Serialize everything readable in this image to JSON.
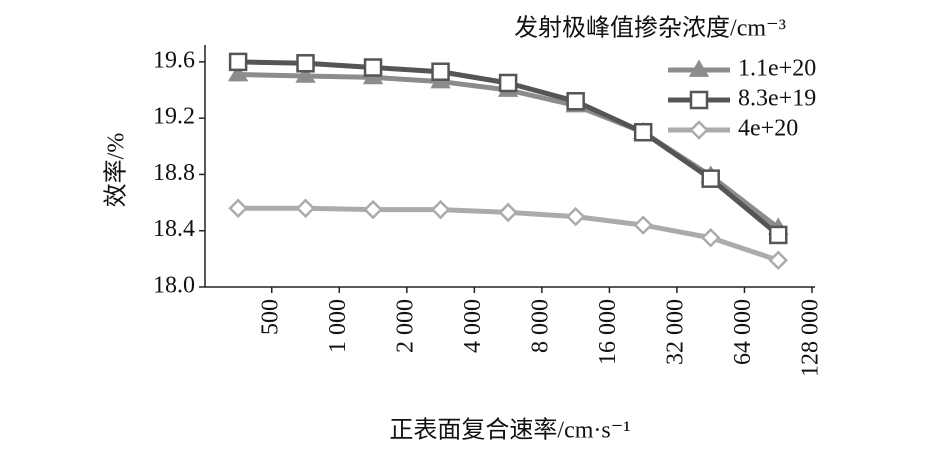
{
  "chart_data": {
    "type": "line",
    "y_label": "效率/%",
    "x_label": "正表面复合速率/cm·s⁻¹",
    "legend_title": "发射极峰值掺杂浓度/cm⁻³",
    "legend": "upper right",
    "x_scale": "log2",
    "x": [
      354,
      707,
      1414,
      2828,
      5657,
      11314,
      22627,
      45255,
      90510
    ],
    "xlim": [
      252,
      132000
    ],
    "xticks": [
      500,
      {
        "value": 1000,
        "label": "1 000"
      },
      {
        "value": 2000,
        "label": "2 000"
      },
      {
        "value": 4000,
        "label": "4 000"
      },
      {
        "value": 8000,
        "label": "8 000"
      },
      {
        "value": 16000,
        "label": "16 000"
      },
      {
        "value": 32000,
        "label": "32 000"
      },
      {
        "value": 64000,
        "label": "64 000"
      },
      {
        "value": 128000,
        "label": "128 000"
      }
    ],
    "ylim": [
      18.0,
      19.72
    ],
    "yticks": [
      {
        "value": 18.0,
        "label": "18.0"
      },
      18.4,
      18.8,
      19.2,
      19.6
    ],
    "series": [
      {
        "name": "1.1e+20",
        "color": "#8c8c8c",
        "marker": "triangle",
        "values": [
          19.51,
          19.5,
          19.49,
          19.46,
          19.4,
          19.29,
          19.1,
          18.79,
          18.42
        ]
      },
      {
        "name": "8.3e+19",
        "color": "#555555",
        "marker": "square",
        "values": [
          19.6,
          19.59,
          19.56,
          19.53,
          19.45,
          19.32,
          19.1,
          18.77,
          18.37
        ]
      },
      {
        "name": "4e+20",
        "color": "#ababab",
        "marker": "diamond",
        "values": [
          18.56,
          18.56,
          18.55,
          18.55,
          18.53,
          18.5,
          18.44,
          18.35,
          18.19
        ]
      }
    ]
  }
}
